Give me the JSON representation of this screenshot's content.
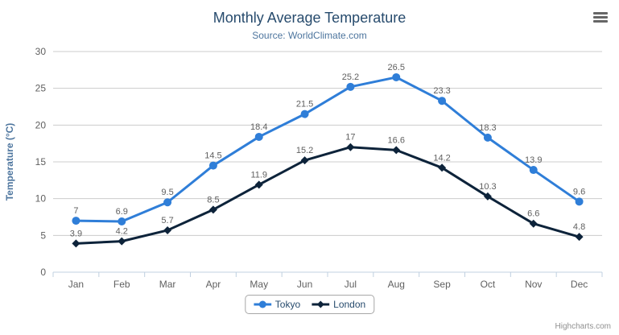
{
  "chart": {
    "title": "Monthly Average Temperature",
    "subtitle": "Source: WorldClimate.com",
    "credits": "Highcharts.com",
    "menu_icon": "hamburger-menu"
  },
  "chart_data": {
    "type": "line",
    "categories": [
      "Jan",
      "Feb",
      "Mar",
      "Apr",
      "May",
      "Jun",
      "Jul",
      "Aug",
      "Sep",
      "Oct",
      "Nov",
      "Dec"
    ],
    "series": [
      {
        "name": "Tokyo",
        "color": "#2f7ed8",
        "marker": "circle",
        "values": [
          7,
          6.9,
          9.5,
          14.5,
          18.4,
          21.5,
          25.2,
          26.5,
          23.3,
          18.3,
          13.9,
          9.6
        ]
      },
      {
        "name": "London",
        "color": "#0d233a",
        "marker": "diamond",
        "values": [
          3.9,
          4.2,
          5.7,
          8.5,
          11.9,
          15.2,
          17,
          16.6,
          14.2,
          10.3,
          6.6,
          4.8
        ]
      }
    ],
    "title": "Monthly Average Temperature",
    "subtitle": "Source: WorldClimate.com",
    "xlabel": "",
    "ylabel": "Temperature (°C)",
    "ylim": [
      0,
      30
    ],
    "yticks": [
      0,
      5,
      10,
      15,
      20,
      25,
      30
    ],
    "grid": true,
    "legend_position": "bottom",
    "data_labels": true,
    "style": {
      "grid_color": "#cccccc",
      "axis_line_color": "#c0d0e0",
      "axis_label_color": "#606060",
      "data_label_color": "#606060",
      "y_title_color": "#4d759e"
    }
  }
}
